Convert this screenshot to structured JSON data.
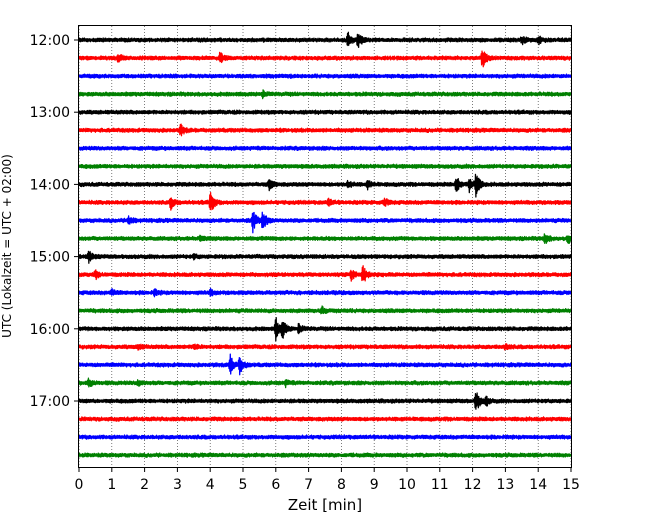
{
  "chart_data": {
    "type": "line",
    "title": "",
    "xlabel": "Zeit  [min]",
    "ylabel": "UTC (Lokalzeit = UTC + 02:00)",
    "xlim": [
      0,
      15
    ],
    "x_ticks": [
      "0",
      "1",
      "2",
      "3",
      "4",
      "5",
      "6",
      "7",
      "8",
      "9",
      "10",
      "11",
      "12",
      "13",
      "14",
      "15"
    ],
    "y_tick_labels": [
      {
        "trace": 0,
        "label": "12:00"
      },
      {
        "trace": 4,
        "label": "13:00"
      },
      {
        "trace": 8,
        "label": "14:00"
      },
      {
        "trace": 12,
        "label": "15:00"
      },
      {
        "trace": 16,
        "label": "16:00"
      },
      {
        "trace": 20,
        "label": "17:00"
      }
    ],
    "grid": "vertical dotted",
    "color_cycle": [
      "#000000",
      "#ff0000",
      "#0000ff",
      "#008000"
    ],
    "traces": [
      {
        "start": "12:00",
        "events": [
          {
            "t": 8.2,
            "amp": 0.8
          },
          {
            "t": 8.5,
            "amp": 1.0
          },
          {
            "t": 13.5,
            "amp": 0.4
          },
          {
            "t": 14.0,
            "amp": 0.5
          }
        ]
      },
      {
        "start": "12:15",
        "events": [
          {
            "t": 1.2,
            "amp": 0.4
          },
          {
            "t": 4.3,
            "amp": 0.6
          },
          {
            "t": 12.3,
            "amp": 1.3
          }
        ]
      },
      {
        "start": "12:30",
        "events": []
      },
      {
        "start": "12:45",
        "events": [
          {
            "t": 5.6,
            "amp": 0.3
          }
        ]
      },
      {
        "start": "13:00",
        "events": []
      },
      {
        "start": "13:15",
        "events": [
          {
            "t": 3.1,
            "amp": 0.6
          }
        ]
      },
      {
        "start": "13:30",
        "events": []
      },
      {
        "start": "13:45",
        "events": []
      },
      {
        "start": "14:00",
        "events": [
          {
            "t": 5.8,
            "amp": 0.6
          },
          {
            "t": 8.2,
            "amp": 0.4
          },
          {
            "t": 8.8,
            "amp": 0.4
          },
          {
            "t": 11.5,
            "amp": 0.9
          },
          {
            "t": 11.9,
            "amp": 0.8
          },
          {
            "t": 12.1,
            "amp": 1.3
          }
        ]
      },
      {
        "start": "14:15",
        "events": [
          {
            "t": 2.8,
            "amp": 0.7
          },
          {
            "t": 4.0,
            "amp": 1.3
          },
          {
            "t": 7.6,
            "amp": 0.4
          },
          {
            "t": 9.3,
            "amp": 0.5
          }
        ]
      },
      {
        "start": "14:30",
        "events": [
          {
            "t": 1.5,
            "amp": 0.5
          },
          {
            "t": 5.3,
            "amp": 1.2
          },
          {
            "t": 5.6,
            "amp": 1.1
          }
        ]
      },
      {
        "start": "14:45",
        "events": [
          {
            "t": 3.7,
            "amp": 0.3
          },
          {
            "t": 14.2,
            "amp": 0.6
          },
          {
            "t": 14.9,
            "amp": 0.5
          }
        ]
      },
      {
        "start": "15:00",
        "events": [
          {
            "t": 0.3,
            "amp": 0.6
          },
          {
            "t": 3.5,
            "amp": 0.2
          }
        ]
      },
      {
        "start": "15:15",
        "events": [
          {
            "t": 0.5,
            "amp": 0.4
          },
          {
            "t": 8.3,
            "amp": 0.6
          },
          {
            "t": 8.65,
            "amp": 1.1
          }
        ]
      },
      {
        "start": "15:30",
        "events": [
          {
            "t": 1.0,
            "amp": 0.3
          },
          {
            "t": 2.3,
            "amp": 0.3
          },
          {
            "t": 4.0,
            "amp": 0.3
          }
        ]
      },
      {
        "start": "15:45",
        "events": [
          {
            "t": 7.4,
            "amp": 0.4
          }
        ]
      },
      {
        "start": "16:00",
        "events": [
          {
            "t": 6.0,
            "amp": 1.2
          },
          {
            "t": 6.2,
            "amp": 1.0
          },
          {
            "t": 6.7,
            "amp": 0.5
          }
        ]
      },
      {
        "start": "16:15",
        "events": [
          {
            "t": 1.8,
            "amp": 0.3
          },
          {
            "t": 3.5,
            "amp": 0.3
          },
          {
            "t": 13.0,
            "amp": 0.3
          }
        ]
      },
      {
        "start": "16:30",
        "events": [
          {
            "t": 4.6,
            "amp": 1.2
          },
          {
            "t": 4.9,
            "amp": 1.0
          }
        ]
      },
      {
        "start": "16:45",
        "events": [
          {
            "t": 0.3,
            "amp": 0.5
          },
          {
            "t": 1.8,
            "amp": 0.3
          },
          {
            "t": 6.3,
            "amp": 0.3
          }
        ]
      },
      {
        "start": "17:00",
        "events": [
          {
            "t": 12.1,
            "amp": 1.3
          },
          {
            "t": 12.4,
            "amp": 0.5
          }
        ]
      },
      {
        "start": "17:15",
        "events": []
      },
      {
        "start": "17:30",
        "events": []
      },
      {
        "start": "17:45",
        "events": []
      }
    ]
  }
}
